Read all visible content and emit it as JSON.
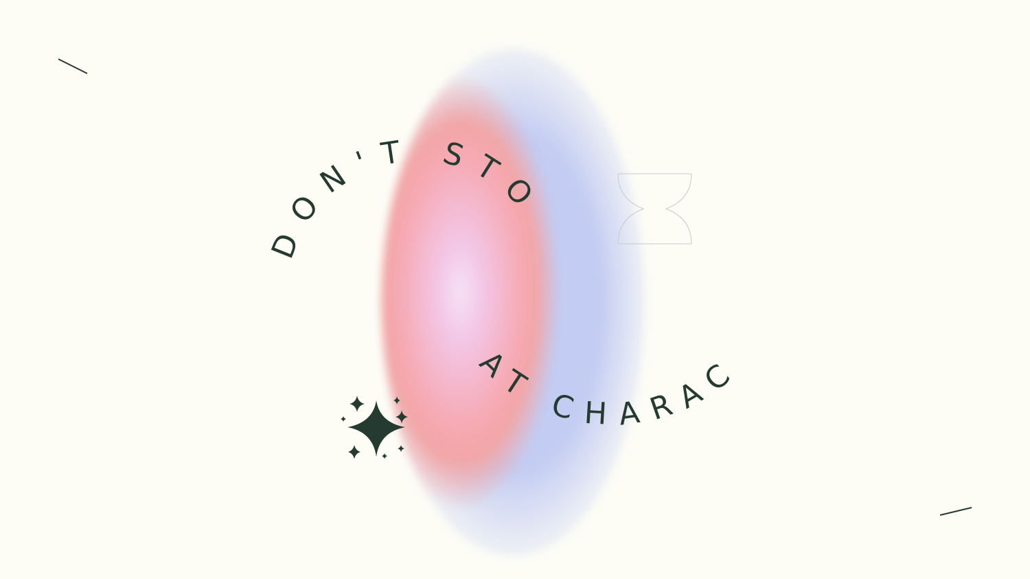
{
  "headline": {
    "line1": "DON'T STOP",
    "line2": "AT CHARACTERS"
  },
  "colors": {
    "background": "#fdfdf6",
    "ink": "#253a30",
    "blob_inner": "#f6e2f6",
    "blob_mid": "#f2a6a6",
    "blob_outer": "#c3ccf2"
  },
  "decorations": [
    "sparkle-icon",
    "hourglass-outline",
    "slash-line"
  ]
}
